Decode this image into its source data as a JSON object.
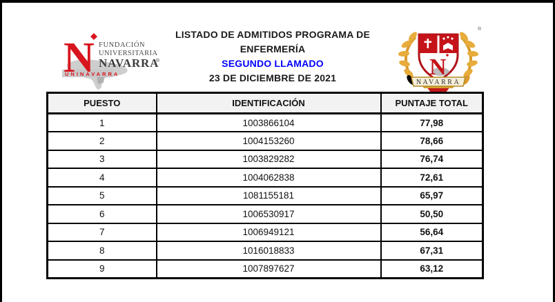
{
  "page": {
    "background": "#ffffff",
    "frame_color": "#000000"
  },
  "header": {
    "title_line1": "LISTADO DE ADMITIDOS PROGRAMA DE",
    "title_line2": "ENFERMERÍA",
    "subtitle": "SEGUNDO LLAMADO",
    "subtitle_color": "#0000ff",
    "date": "23 DE DICIEMBRE DE 2021"
  },
  "logo_left": {
    "letter": "N",
    "line1": "FUNDACIÓN",
    "line2": "UNIVERSITARIA",
    "line3": "NAVARRA",
    "registered": "®",
    "tagline": "UNINAVARRA",
    "red": "#d8151e",
    "gray_text": "#4a4a48"
  },
  "crest": {
    "letter": "N",
    "banner": "NAVARRA",
    "registered": "®",
    "gold": "#e2a233",
    "red": "#c41319"
  },
  "table": {
    "header_bg": "#f2f2f2",
    "columns": [
      "PUESTO",
      "IDENTIFICACIÓN",
      "PUNTAJE TOTAL"
    ],
    "rows": [
      {
        "puesto": "1",
        "identificacion": "1003866104",
        "puntaje": "77,98"
      },
      {
        "puesto": "2",
        "identificacion": "1004153260",
        "puntaje": "78,66"
      },
      {
        "puesto": "3",
        "identificacion": "1003829282",
        "puntaje": "76,74"
      },
      {
        "puesto": "4",
        "identificacion": "1004062838",
        "puntaje": "72,61"
      },
      {
        "puesto": "5",
        "identificacion": "1081155181",
        "puntaje": "65,97"
      },
      {
        "puesto": "6",
        "identificacion": "1006530917",
        "puntaje": "50,50"
      },
      {
        "puesto": "7",
        "identificacion": "1006949121",
        "puntaje": "56,64"
      },
      {
        "puesto": "8",
        "identificacion": "1016018833",
        "puntaje": "67,31"
      },
      {
        "puesto": "9",
        "identificacion": "1007897627",
        "puntaje": "63,12"
      }
    ]
  }
}
